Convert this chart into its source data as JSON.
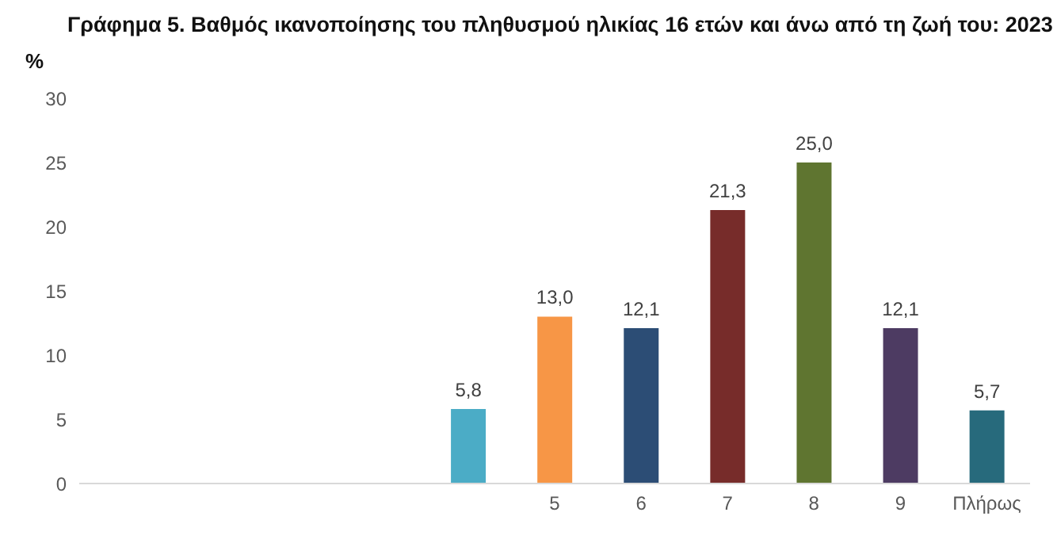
{
  "chart_data": {
    "type": "bar",
    "title": "Γράφημα 5. Βαθμός ικανοποίησης του πληθυσμού ηλικίας 16 ετών και άνω από τη ζωή του: 2023",
    "ylabel": "%",
    "categories": [
      null,
      null,
      null,
      null,
      null,
      "5",
      "6",
      "7",
      "8",
      "9",
      "Πλήρως"
    ],
    "values": [
      null,
      null,
      null,
      null,
      5.8,
      13.0,
      12.1,
      21.3,
      25.0,
      12.1,
      5.7
    ],
    "value_labels": [
      null,
      null,
      null,
      null,
      "5,8",
      "13,0",
      "12,1",
      "21,3",
      "25,0",
      "12,1",
      "5,7"
    ],
    "colors": [
      "#4f81bd",
      "#c0504d",
      "#9bbb59",
      "#8064a2",
      "#4bacc6",
      "#f79646",
      "#2c4d75",
      "#772c2a",
      "#5f7530",
      "#4d3b62",
      "#276a7c"
    ],
    "ylim": [
      0,
      30
    ],
    "yticks": [
      0,
      5,
      10,
      15,
      20,
      25,
      30
    ],
    "grid": false
  }
}
